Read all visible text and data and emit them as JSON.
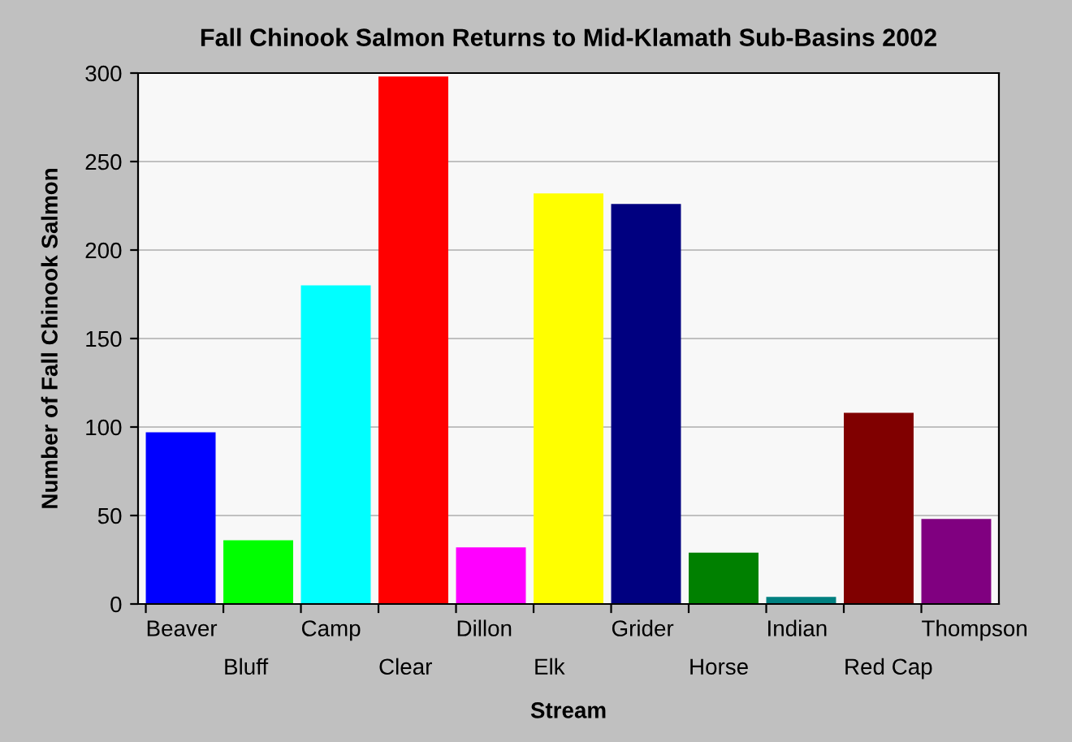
{
  "chart_data": {
    "type": "bar",
    "title": "Fall Chinook Salmon Returns to Mid-Klamath Sub-Basins 2002",
    "xlabel": "Stream",
    "ylabel": "Number of Fall Chinook Salmon",
    "categories": [
      "Beaver",
      "Bluff",
      "Camp",
      "Clear",
      "Dillon",
      "Elk",
      "Grider",
      "Horse",
      "Indian",
      "Red Cap",
      "Thompson"
    ],
    "values": [
      97,
      36,
      180,
      298,
      32,
      232,
      226,
      29,
      4,
      108,
      48
    ],
    "colors": [
      "#0000ff",
      "#00ff00",
      "#00ffff",
      "#ff0000",
      "#ff00ff",
      "#ffff00",
      "#000080",
      "#008000",
      "#008080",
      "#800000",
      "#800080"
    ],
    "ylim": [
      0,
      300
    ],
    "yticks": [
      0,
      50,
      100,
      150,
      200,
      250,
      300
    ],
    "grid": "y",
    "legend": false
  }
}
